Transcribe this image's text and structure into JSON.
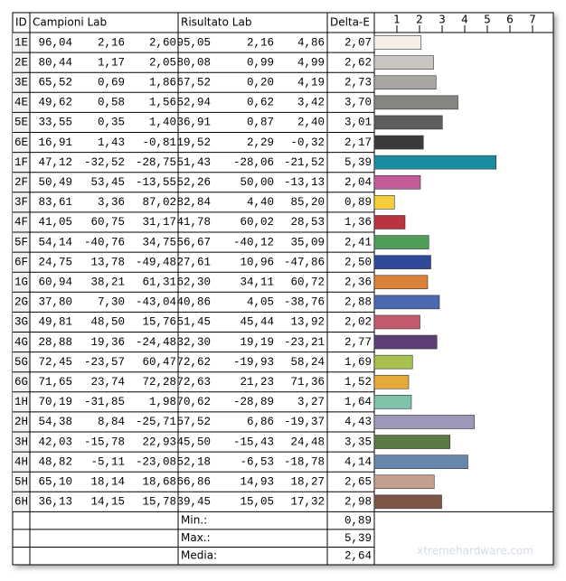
{
  "table": {
    "headers": [
      "ID",
      "Campioni Lab",
      "Risultato Lab",
      "Delta-E"
    ],
    "rows": [
      {
        "campioni": [
          "96,04",
          "2,16",
          "2,60"
        ],
        "risultato": [
          "95,05",
          "2,16",
          "4,86"
        ]
      },
      {
        "campioni": [
          "80,44",
          "1,17",
          "2,05"
        ],
        "risultato": [
          "80,08",
          "0,99",
          "4,99"
        ]
      },
      {
        "campioni": [
          "65,52",
          "0,69",
          "1,86"
        ],
        "risultato": [
          "67,52",
          "0,20",
          "4,19"
        ]
      },
      {
        "campioni": [
          "49,62",
          "0,58",
          "1,56"
        ],
        "risultato": [
          "52,94",
          "0,62",
          "3,42"
        ]
      },
      {
        "campioni": [
          "33,55",
          "0,35",
          "1,40"
        ],
        "risultato": [
          "36,91",
          "0,87",
          "2,40"
        ]
      },
      {
        "campioni": [
          "16,91",
          "1,43",
          "-0,81"
        ],
        "risultato": [
          "19,52",
          "2,29",
          "-0,32"
        ]
      },
      {
        "campioni": [
          "47,12",
          "-32,52",
          "-28,75"
        ],
        "risultato": [
          "51,43",
          "-28,06",
          "-21,52"
        ]
      },
      {
        "campioni": [
          "50,49",
          "53,45",
          "-13,55"
        ],
        "risultato": [
          "52,26",
          "50,00",
          "-13,13"
        ]
      },
      {
        "campioni": [
          "83,61",
          "3,36",
          "87,02"
        ],
        "risultato": [
          "82,84",
          "4,40",
          "85,20"
        ]
      },
      {
        "campioni": [
          "41,05",
          "60,75",
          "31,17"
        ],
        "risultato": [
          "41,78",
          "60,02",
          "28,53"
        ]
      },
      {
        "campioni": [
          "54,14",
          "-40,76",
          "34,75"
        ],
        "risultato": [
          "56,67",
          "-40,12",
          "35,09"
        ]
      },
      {
        "campioni": [
          "24,75",
          "13,78",
          "-49,48"
        ],
        "risultato": [
          "27,61",
          "10,96",
          "-47,86"
        ]
      },
      {
        "campioni": [
          "60,94",
          "38,21",
          "61,31"
        ],
        "risultato": [
          "62,30",
          "34,11",
          "60,72"
        ]
      },
      {
        "campioni": [
          "37,80",
          "7,30",
          "-43,04"
        ],
        "risultato": [
          "40,86",
          "4,05",
          "-38,76"
        ]
      },
      {
        "campioni": [
          "49,81",
          "48,50",
          "15,76"
        ],
        "risultato": [
          "51,45",
          "45,44",
          "13,92"
        ]
      },
      {
        "campioni": [
          "28,88",
          "19,36",
          "-24,48"
        ],
        "risultato": [
          "32,30",
          "19,19",
          "-23,21"
        ]
      },
      {
        "campioni": [
          "72,45",
          "-23,57",
          "60,47"
        ],
        "risultato": [
          "72,62",
          "-19,93",
          "58,24"
        ]
      },
      {
        "campioni": [
          "71,65",
          "23,74",
          "72,28"
        ],
        "risultato": [
          "72,63",
          "21,23",
          "71,36"
        ]
      },
      {
        "campioni": [
          "70,19",
          "-31,85",
          "1,98"
        ],
        "risultato": [
          "70,62",
          "-28,89",
          "3,27"
        ]
      },
      {
        "campioni": [
          "54,38",
          "8,84",
          "-25,71"
        ],
        "risultato": [
          "57,52",
          "6,86",
          "-19,37"
        ]
      },
      {
        "campioni": [
          "42,03",
          "-15,78",
          "22,93"
        ],
        "risultato": [
          "45,50",
          "-15,43",
          "24,48"
        ]
      },
      {
        "campioni": [
          "48,82",
          "-5,11",
          "-23,08"
        ],
        "risultato": [
          "52,18",
          "-6,53",
          "-18,78"
        ]
      },
      {
        "campioni": [
          "65,10",
          "18,14",
          "18,68"
        ],
        "risultato": [
          "66,86",
          "14,93",
          "18,27"
        ]
      },
      {
        "campioni": [
          "36,13",
          "14,15",
          "15,78"
        ],
        "risultato": [
          "39,45",
          "15,05",
          "17,32"
        ]
      }
    ],
    "summary": [
      {
        "label": "Min.:",
        "value": "0,89"
      },
      {
        "label": "Max.:",
        "value": "5,39"
      },
      {
        "label": "Media:",
        "value": "2,64"
      }
    ]
  },
  "chart_data": {
    "type": "bar",
    "categories": [
      "1E",
      "2E",
      "3E",
      "4E",
      "5E",
      "6E",
      "1F",
      "2F",
      "3F",
      "4F",
      "5F",
      "6F",
      "1G",
      "2G",
      "3G",
      "4G",
      "5G",
      "6G",
      "1H",
      "2H",
      "3H",
      "4H",
      "5H",
      "6H"
    ],
    "values": [
      2.07,
      2.62,
      2.73,
      3.7,
      3.01,
      2.17,
      5.39,
      2.04,
      0.89,
      1.36,
      2.41,
      2.5,
      2.36,
      2.88,
      2.02,
      2.77,
      1.69,
      1.52,
      1.64,
      4.43,
      3.35,
      4.14,
      2.65,
      2.98
    ],
    "value_labels": [
      "2,07",
      "2,62",
      "2,73",
      "3,70",
      "3,01",
      "2,17",
      "5,39",
      "2,04",
      "0,89",
      "1,36",
      "2,41",
      "2,50",
      "2,36",
      "2,88",
      "2,02",
      "2,77",
      "1,69",
      "1,52",
      "1,64",
      "4,43",
      "3,35",
      "4,14",
      "2,65",
      "2,98"
    ],
    "colors": [
      "#f4eee6",
      "#c9c6c1",
      "#a9a6a1",
      "#878581",
      "#605e5d",
      "#3c3b3b",
      "#1a8ea0",
      "#c45c9a",
      "#f4cd3c",
      "#b9343f",
      "#4f9e58",
      "#2f4a98",
      "#d98238",
      "#4a69ae",
      "#c25b6b",
      "#5b3f76",
      "#a7c050",
      "#e6aa3a",
      "#7ec2a8",
      "#9c98b9",
      "#5b7a46",
      "#6587ab",
      "#c59f8e",
      "#7e5645"
    ],
    "xlim": [
      0,
      8
    ],
    "xticks": [
      1,
      2,
      3,
      4,
      5,
      6,
      7
    ]
  },
  "watermark": "xtremehardware.com"
}
